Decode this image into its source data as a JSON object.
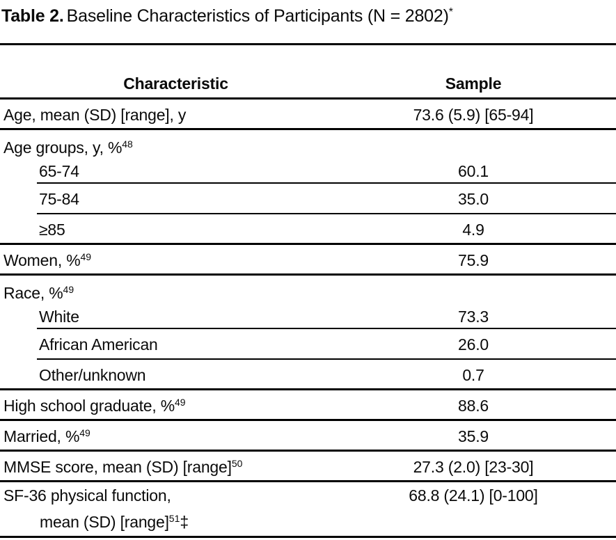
{
  "title": {
    "label": "Table 2.",
    "text": "Baseline Characteristics of Participants (N = 2802)",
    "sup": "*"
  },
  "header": {
    "characteristic": "Characteristic",
    "sample": "Sample"
  },
  "rows": [
    {
      "label": "Age, mean (SD) [range], y",
      "value": "73.6 (5.9) [65-94]",
      "kind": "simple",
      "divider": "full"
    },
    {
      "label": "Age groups, y, %",
      "sup": "48",
      "value": "",
      "kind": "group",
      "divider": "none"
    },
    {
      "label": "65-74",
      "value": "60.1",
      "kind": "sub-first",
      "divider": "indent",
      "indent": true
    },
    {
      "label": "75-84",
      "value": "35.0",
      "kind": "sub",
      "divider": "indent",
      "indent": true
    },
    {
      "label": "≥85",
      "value": "4.9",
      "kind": "sub",
      "divider": "full",
      "indent": true
    },
    {
      "label": "Women, %",
      "sup": "49",
      "value": "75.9",
      "kind": "simple",
      "divider": "full"
    },
    {
      "label": "Race, %",
      "sup": "49",
      "value": "",
      "kind": "group",
      "divider": "none"
    },
    {
      "label": "White",
      "value": "73.3",
      "kind": "sub-first",
      "divider": "indent",
      "indent": true
    },
    {
      "label": "African American",
      "value": "26.0",
      "kind": "sub",
      "divider": "indent",
      "indent": true
    },
    {
      "label": "Other/unknown",
      "value": "0.7",
      "kind": "sub",
      "divider": "full",
      "indent": true
    },
    {
      "label": "High school graduate, %",
      "sup": "49",
      "value": "88.6",
      "kind": "simple",
      "divider": "full"
    },
    {
      "label": "Married, %",
      "sup": "49",
      "value": "35.9",
      "kind": "simple",
      "divider": "full"
    },
    {
      "label": "MMSE score, mean (SD) [range]",
      "sup": "50",
      "value": "27.3 (2.0) [23-30]",
      "kind": "simple",
      "divider": "full"
    },
    {
      "label": "SF-36 physical function,",
      "label2": "mean (SD) [range]",
      "sup2": "51",
      "suffix2": "‡",
      "value": "68.8 (24.1) [0-100]",
      "kind": "tall",
      "divider": "full"
    }
  ]
}
